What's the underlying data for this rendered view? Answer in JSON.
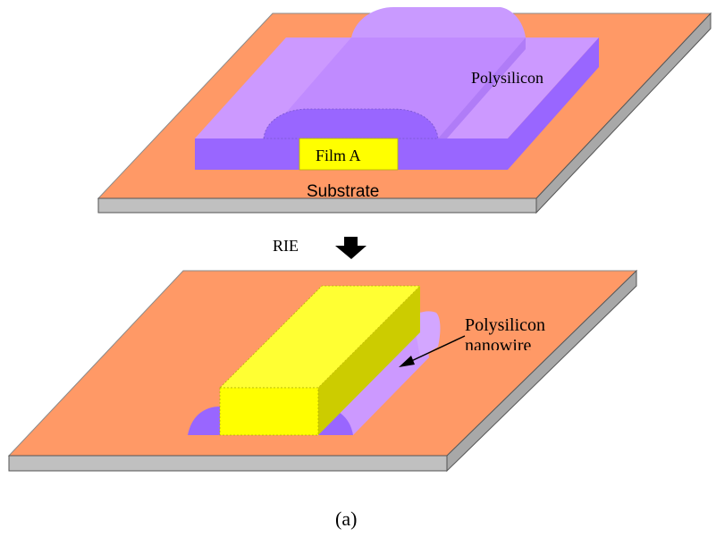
{
  "labels": {
    "top_polysilicon": "Polysilicon",
    "film_a": "Film A",
    "substrate": "Substrate",
    "process_step": "RIE",
    "bottom_polysilicon": "Polysilicon",
    "bottom_nanowire": "nanowire",
    "caption": "(a)"
  },
  "colors": {
    "substrate_top": "#FF9966",
    "substrate_side": "#C0C0C0",
    "poly_light": "#CC99FF",
    "poly_dark": "#9966FF",
    "film_yellow": "#FFFF00",
    "film_yellow_side": "#CCCC00"
  }
}
